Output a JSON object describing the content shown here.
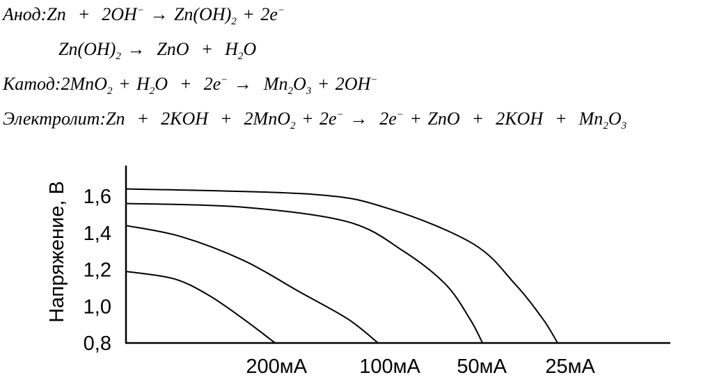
{
  "equations": [
    [
      [
        "Анод:",
        "t"
      ],
      [
        "Zn  +  2OH",
        "t"
      ],
      [
        "−",
        "sup"
      ],
      [
        " → ",
        "t"
      ],
      [
        "Zn(OH)",
        "t"
      ],
      [
        "2",
        "sub"
      ],
      [
        " + 2e",
        "t"
      ],
      [
        "−",
        "sup"
      ]
    ],
    [
      [
        "Zn(OH)",
        "t"
      ],
      [
        "2",
        "sub"
      ],
      [
        " →  ZnO  +  H",
        "t"
      ],
      [
        "2",
        "sub"
      ],
      [
        "O",
        "t"
      ]
    ],
    [
      [
        "Катод:2MnO",
        "t"
      ],
      [
        "2",
        "sub"
      ],
      [
        " + H",
        "t"
      ],
      [
        "2",
        "sub"
      ],
      [
        "O  +  2e",
        "t"
      ],
      [
        "−",
        "sup"
      ],
      [
        " →  Mn",
        "t"
      ],
      [
        "2",
        "sub"
      ],
      [
        "O",
        "t"
      ],
      [
        "3",
        "sub"
      ],
      [
        " + 2OH",
        "t"
      ],
      [
        "−",
        "sup"
      ]
    ],
    [
      [
        "Электролит:Zn  +  2KOH  +  2MnO",
        "t"
      ],
      [
        "2",
        "sub"
      ],
      [
        " + 2e",
        "t"
      ],
      [
        "−",
        "sup"
      ],
      [
        " →  2e",
        "t"
      ],
      [
        "−",
        "sup"
      ],
      [
        " + ZnO  +  2KOH  +  Mn",
        "t"
      ],
      [
        "2",
        "sub"
      ],
      [
        "O",
        "t"
      ],
      [
        "3",
        "sub"
      ]
    ]
  ],
  "chart_data": {
    "type": "line",
    "title": "",
    "xlabel": "",
    "ylabel": "Напряжение, В",
    "yticks": [
      "1,6",
      "1,4",
      "1,2",
      "1,0",
      "0,8"
    ],
    "ytick_values": [
      1.6,
      1.4,
      1.2,
      1.0,
      0.8
    ],
    "ylim": [
      0.8,
      1.7
    ],
    "xlim": [
      0,
      100
    ],
    "grid": false,
    "line_color": "#000000",
    "series": [
      {
        "name": "200мА",
        "x": [
          0,
          8.8,
          15.2,
          21.6,
          27.4
        ],
        "y": [
          1.19,
          1.15,
          1.06,
          0.93,
          0.8
        ]
      },
      {
        "name": "100мА",
        "x": [
          0,
          10.1,
          21.6,
          31.8,
          40.8,
          46.3
        ],
        "y": [
          1.44,
          1.38,
          1.25,
          1.08,
          0.93,
          0.8
        ]
      },
      {
        "name": "50мА",
        "x": [
          0,
          21.6,
          40.8,
          51.0,
          58.7,
          63.2,
          65.5
        ],
        "y": [
          1.56,
          1.54,
          1.46,
          1.3,
          1.12,
          0.93,
          0.8
        ]
      },
      {
        "name": "25мА",
        "x": [
          0,
          34.4,
          48.5,
          63.8,
          71.5,
          76.6,
          79.3
        ],
        "y": [
          1.64,
          1.61,
          1.53,
          1.34,
          1.12,
          0.93,
          0.8
        ]
      }
    ]
  }
}
